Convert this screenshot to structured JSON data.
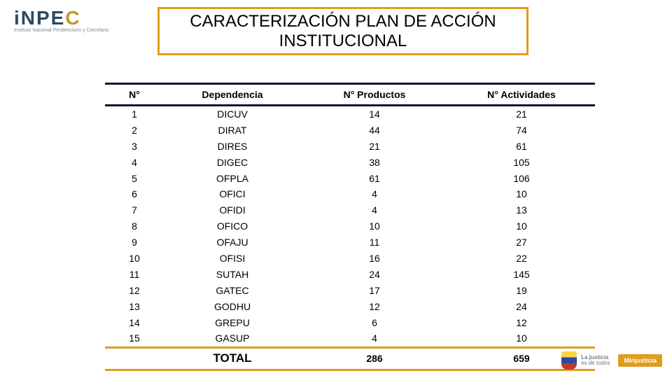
{
  "logo": {
    "brand_part1": "iNPE",
    "brand_part2": "C",
    "subtitle": "Instituto Nacional Penitenciario y Carcelario"
  },
  "title": "CARACTERIZACIÓN PLAN DE ACCIÓN INSTITUCIONAL",
  "colors": {
    "accent_orange": "#e09c1f",
    "header_navy": "#0a1830",
    "logo_navy": "#2c4a63",
    "logo_accent": "#c4962a",
    "background": "#ffffff"
  },
  "typography": {
    "title_fontsize": 24,
    "header_fontsize": 14,
    "cell_fontsize": 14,
    "total_label_fontsize": 17
  },
  "table": {
    "columns": [
      "N°",
      "Dependencia",
      "N° Productos",
      "N° Actividades"
    ],
    "col_widths_pct": [
      12,
      28,
      30,
      30
    ],
    "rows": [
      {
        "n": "1",
        "dep": "DICUV",
        "prod": "14",
        "act": "21"
      },
      {
        "n": "2",
        "dep": "DIRAT",
        "prod": "44",
        "act": "74"
      },
      {
        "n": "3",
        "dep": "DIRES",
        "prod": "21",
        "act": "61"
      },
      {
        "n": "4",
        "dep": "DIGEC",
        "prod": "38",
        "act": "105"
      },
      {
        "n": "5",
        "dep": "OFPLA",
        "prod": "61",
        "act": "106"
      },
      {
        "n": "6",
        "dep": "OFICI",
        "prod": "4",
        "act": "10"
      },
      {
        "n": "7",
        "dep": "OFIDI",
        "prod": "4",
        "act": "13"
      },
      {
        "n": "8",
        "dep": "OFICO",
        "prod": "10",
        "act": "10"
      },
      {
        "n": "9",
        "dep": "OFAJU",
        "prod": "11",
        "act": "27"
      },
      {
        "n": "10",
        "dep": "OFISI",
        "prod": "16",
        "act": "22"
      },
      {
        "n": "11",
        "dep": "SUTAH",
        "prod": "24",
        "act": "145"
      },
      {
        "n": "12",
        "dep": "GATEC",
        "prod": "17",
        "act": "19"
      },
      {
        "n": "13",
        "dep": "GODHU",
        "prod": "12",
        "act": "24"
      },
      {
        "n": "14",
        "dep": "GREPU",
        "prod": "6",
        "act": "12"
      },
      {
        "n": "15",
        "dep": "GASUP",
        "prod": "4",
        "act": "10"
      }
    ],
    "total": {
      "label": "TOTAL",
      "prod": "286",
      "act": "659"
    }
  },
  "footer": {
    "slogan_line1": "La justicia",
    "slogan_line2": "es de todos",
    "ministry": "Minjusticia"
  }
}
